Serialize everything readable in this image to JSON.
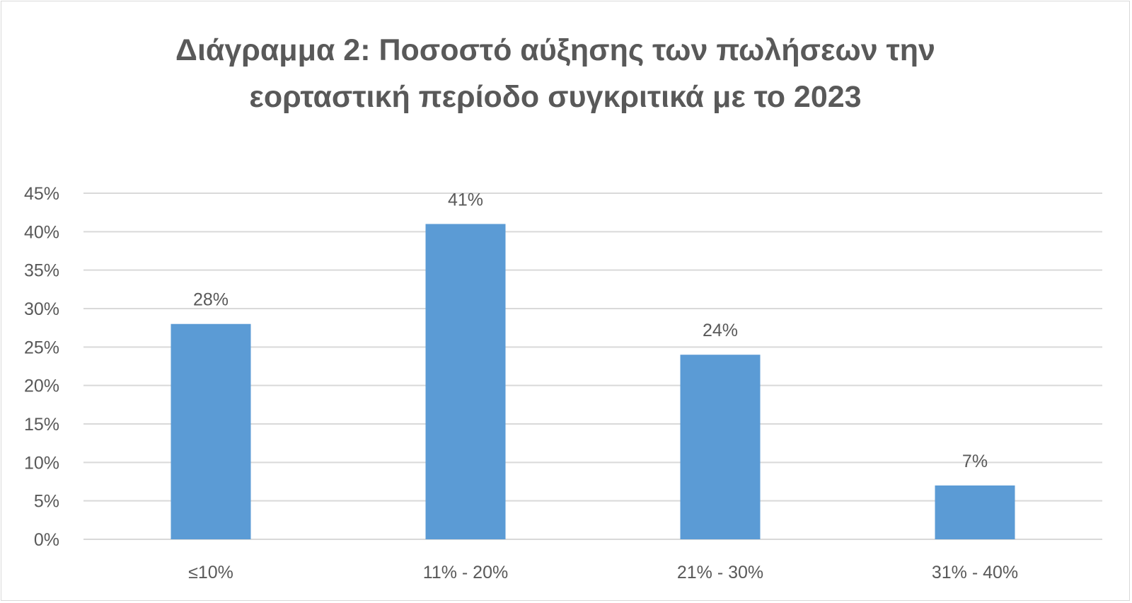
{
  "chart_data": {
    "type": "bar",
    "title_lines": [
      "Διάγραμμα 2: Ποσοστό αύξησης των πωλήσεων την",
      "εορταστική περίοδο συγκριτικά με το 2023"
    ],
    "categories": [
      "≤10%",
      "11% - 20%",
      "21% - 30%",
      "31% - 40%"
    ],
    "values": [
      28,
      41,
      24,
      7
    ],
    "data_labels": [
      "28%",
      "41%",
      "24%",
      "7%"
    ],
    "y_ticks": [
      "0%",
      "5%",
      "10%",
      "15%",
      "20%",
      "25%",
      "30%",
      "35%",
      "40%",
      "45%"
    ],
    "ylim": [
      0,
      45
    ],
    "y_step": 5,
    "grid": true,
    "legend": "none",
    "xlabel": "",
    "ylabel": "",
    "colors": {
      "bar": "#5b9bd5",
      "grid": "#d9d9d9",
      "text": "#595959"
    }
  }
}
